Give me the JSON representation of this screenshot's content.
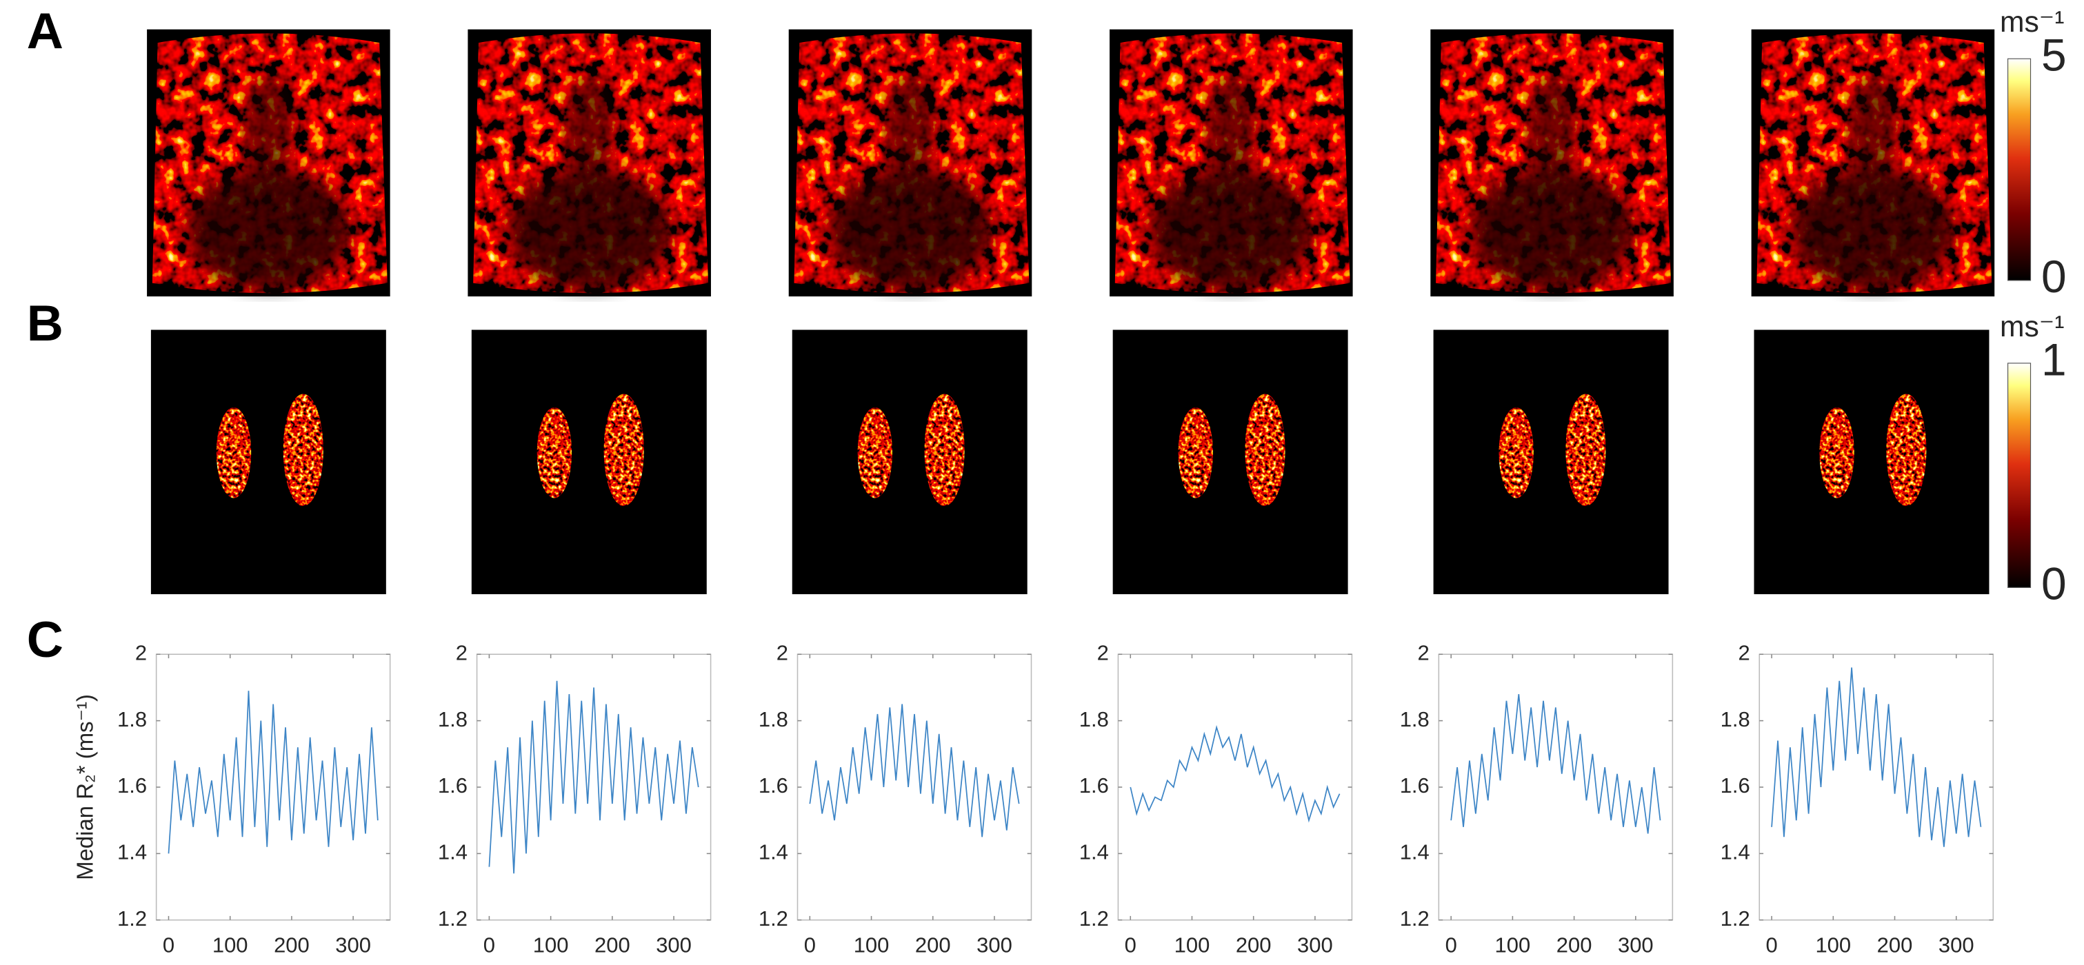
{
  "panel_labels": [
    "A",
    "B",
    "C"
  ],
  "colorbars": [
    {
      "unit": "ms⁻¹",
      "lim": [
        0,
        5
      ],
      "ticks": [
        0,
        5
      ]
    },
    {
      "unit": "ms⁻¹",
      "lim": [
        0,
        1
      ],
      "ticks": [
        0,
        1
      ]
    }
  ],
  "chart_data": [
    {
      "type": "line",
      "color": "#3d85c6",
      "ylabel": "Median R₂* (ms⁻¹)",
      "x": [
        0,
        10,
        20,
        30,
        40,
        50,
        60,
        70,
        80,
        90,
        100,
        110,
        120,
        130,
        140,
        150,
        160,
        170,
        180,
        190,
        200,
        210,
        220,
        230,
        240,
        250,
        260,
        270,
        280,
        290,
        300,
        310,
        320,
        330,
        340
      ],
      "values": [
        1.4,
        1.68,
        1.5,
        1.64,
        1.48,
        1.66,
        1.52,
        1.62,
        1.45,
        1.7,
        1.5,
        1.75,
        1.45,
        1.89,
        1.48,
        1.8,
        1.42,
        1.85,
        1.5,
        1.78,
        1.44,
        1.72,
        1.46,
        1.75,
        1.5,
        1.68,
        1.42,
        1.72,
        1.48,
        1.66,
        1.44,
        1.7,
        1.46,
        1.78,
        1.5
      ],
      "xlim": [
        -20,
        360
      ],
      "xticks": [
        0,
        100,
        200,
        300
      ],
      "ylim": [
        1.2,
        2
      ],
      "yticks": [
        1.2,
        1.4,
        1.6,
        1.8,
        2
      ]
    },
    {
      "type": "line",
      "color": "#3d85c6",
      "x": [
        0,
        10,
        20,
        30,
        40,
        50,
        60,
        70,
        80,
        90,
        100,
        110,
        120,
        130,
        140,
        150,
        160,
        170,
        180,
        190,
        200,
        210,
        220,
        230,
        240,
        250,
        260,
        270,
        280,
        290,
        300,
        310,
        320,
        330,
        340
      ],
      "values": [
        1.36,
        1.68,
        1.45,
        1.72,
        1.34,
        1.75,
        1.4,
        1.8,
        1.45,
        1.86,
        1.5,
        1.92,
        1.55,
        1.88,
        1.52,
        1.86,
        1.55,
        1.9,
        1.5,
        1.85,
        1.55,
        1.82,
        1.5,
        1.78,
        1.52,
        1.75,
        1.55,
        1.72,
        1.5,
        1.7,
        1.55,
        1.74,
        1.52,
        1.72,
        1.6
      ],
      "xlim": [
        -20,
        360
      ],
      "xticks": [
        0,
        100,
        200,
        300
      ],
      "ylim": [
        1.2,
        2
      ],
      "yticks": [
        1.2,
        1.4,
        1.6,
        1.8,
        2
      ]
    },
    {
      "type": "line",
      "color": "#3d85c6",
      "x": [
        0,
        10,
        20,
        30,
        40,
        50,
        60,
        70,
        80,
        90,
        100,
        110,
        120,
        130,
        140,
        150,
        160,
        170,
        180,
        190,
        200,
        210,
        220,
        230,
        240,
        250,
        260,
        270,
        280,
        290,
        300,
        310,
        320,
        330,
        340
      ],
      "values": [
        1.55,
        1.68,
        1.52,
        1.62,
        1.5,
        1.66,
        1.55,
        1.72,
        1.58,
        1.78,
        1.62,
        1.82,
        1.6,
        1.84,
        1.62,
        1.85,
        1.6,
        1.82,
        1.58,
        1.8,
        1.55,
        1.76,
        1.52,
        1.72,
        1.5,
        1.68,
        1.48,
        1.66,
        1.45,
        1.64,
        1.5,
        1.62,
        1.47,
        1.66,
        1.55
      ],
      "xlim": [
        -20,
        360
      ],
      "xticks": [
        0,
        100,
        200,
        300
      ],
      "ylim": [
        1.2,
        2
      ],
      "yticks": [
        1.2,
        1.4,
        1.6,
        1.8,
        2
      ]
    },
    {
      "type": "line",
      "color": "#3d85c6",
      "x": [
        0,
        10,
        20,
        30,
        40,
        50,
        60,
        70,
        80,
        90,
        100,
        110,
        120,
        130,
        140,
        150,
        160,
        170,
        180,
        190,
        200,
        210,
        220,
        230,
        240,
        250,
        260,
        270,
        280,
        290,
        300,
        310,
        320,
        330,
        340
      ],
      "values": [
        1.6,
        1.52,
        1.58,
        1.53,
        1.57,
        1.56,
        1.62,
        1.6,
        1.68,
        1.65,
        1.72,
        1.68,
        1.76,
        1.7,
        1.78,
        1.72,
        1.75,
        1.68,
        1.76,
        1.66,
        1.72,
        1.64,
        1.68,
        1.6,
        1.64,
        1.56,
        1.6,
        1.52,
        1.58,
        1.5,
        1.56,
        1.52,
        1.6,
        1.54,
        1.58
      ],
      "xlim": [
        -20,
        360
      ],
      "xticks": [
        0,
        100,
        200,
        300
      ],
      "ylim": [
        1.2,
        2
      ],
      "yticks": [
        1.2,
        1.4,
        1.6,
        1.8,
        2
      ]
    },
    {
      "type": "line",
      "color": "#3d85c6",
      "x": [
        0,
        10,
        20,
        30,
        40,
        50,
        60,
        70,
        80,
        90,
        100,
        110,
        120,
        130,
        140,
        150,
        160,
        170,
        180,
        190,
        200,
        210,
        220,
        230,
        240,
        250,
        260,
        270,
        280,
        290,
        300,
        310,
        320,
        330,
        340
      ],
      "values": [
        1.5,
        1.66,
        1.48,
        1.68,
        1.52,
        1.7,
        1.56,
        1.78,
        1.62,
        1.86,
        1.7,
        1.88,
        1.68,
        1.84,
        1.66,
        1.86,
        1.68,
        1.84,
        1.64,
        1.8,
        1.62,
        1.76,
        1.56,
        1.7,
        1.52,
        1.66,
        1.5,
        1.64,
        1.48,
        1.62,
        1.48,
        1.6,
        1.46,
        1.66,
        1.5
      ],
      "xlim": [
        -20,
        360
      ],
      "xticks": [
        0,
        100,
        200,
        300
      ],
      "ylim": [
        1.2,
        2
      ],
      "yticks": [
        1.2,
        1.4,
        1.6,
        1.8,
        2
      ]
    },
    {
      "type": "line",
      "color": "#3d85c6",
      "x": [
        0,
        10,
        20,
        30,
        40,
        50,
        60,
        70,
        80,
        90,
        100,
        110,
        120,
        130,
        140,
        150,
        160,
        170,
        180,
        190,
        200,
        210,
        220,
        230,
        240,
        250,
        260,
        270,
        280,
        290,
        300,
        310,
        320,
        330,
        340
      ],
      "values": [
        1.48,
        1.74,
        1.45,
        1.72,
        1.5,
        1.78,
        1.52,
        1.82,
        1.6,
        1.9,
        1.65,
        1.92,
        1.68,
        1.96,
        1.7,
        1.9,
        1.65,
        1.88,
        1.62,
        1.85,
        1.58,
        1.75,
        1.52,
        1.7,
        1.45,
        1.66,
        1.44,
        1.6,
        1.42,
        1.62,
        1.46,
        1.64,
        1.45,
        1.62,
        1.48
      ],
      "xlim": [
        -20,
        360
      ],
      "xticks": [
        0,
        100,
        200,
        300
      ],
      "ylim": [
        1.2,
        2
      ],
      "yticks": [
        1.2,
        1.4,
        1.6,
        1.8,
        2
      ]
    }
  ]
}
